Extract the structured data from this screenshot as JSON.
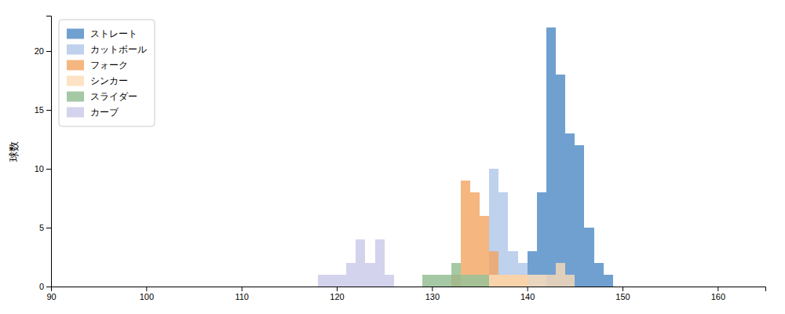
{
  "chart_data": {
    "type": "histogram",
    "ylabel": "球数",
    "xlim": [
      90,
      165
    ],
    "ylim": [
      0,
      23
    ],
    "xticks": [
      90,
      100,
      110,
      120,
      130,
      140,
      150,
      160
    ],
    "yticks": [
      0,
      5,
      10,
      15,
      20
    ],
    "legend": "upper left",
    "bins": [
      90,
      91,
      92,
      93,
      94,
      95,
      96,
      97,
      98,
      99,
      100,
      101,
      102,
      103,
      104,
      105,
      106,
      107,
      108,
      109,
      110,
      111,
      112,
      113,
      114,
      115,
      116,
      117,
      118,
      119,
      120,
      121,
      122,
      123,
      124,
      125,
      126,
      127,
      128,
      129,
      130,
      131,
      132,
      133,
      134,
      135,
      136,
      137,
      138,
      139,
      140,
      141,
      142,
      143,
      144,
      145,
      146,
      147,
      148,
      149,
      150,
      151,
      152,
      153,
      154,
      155,
      156,
      157,
      158,
      159,
      160,
      161,
      162,
      163,
      164,
      165
    ],
    "series": [
      {
        "name": "ストレート",
        "color": "#4C88C4",
        "values": [
          0,
          0,
          0,
          0,
          0,
          0,
          0,
          0,
          0,
          0,
          0,
          0,
          0,
          0,
          0,
          0,
          0,
          0,
          0,
          0,
          0,
          0,
          0,
          0,
          0,
          0,
          0,
          0,
          0,
          0,
          0,
          0,
          0,
          0,
          0,
          0,
          0,
          0,
          0,
          0,
          0,
          0,
          0,
          0,
          0,
          0,
          0,
          0,
          0,
          0,
          3,
          8,
          22,
          18,
          13,
          12,
          5,
          2,
          1,
          0,
          0,
          0,
          0,
          0,
          0,
          0,
          0,
          0,
          0,
          0,
          0,
          0,
          0,
          0,
          0
        ]
      },
      {
        "name": "カットボール",
        "color": "#AEC6E8",
        "values": [
          0,
          0,
          0,
          0,
          0,
          0,
          0,
          0,
          0,
          0,
          0,
          0,
          0,
          0,
          0,
          0,
          0,
          0,
          0,
          0,
          0,
          0,
          0,
          0,
          0,
          0,
          0,
          0,
          0,
          0,
          0,
          0,
          0,
          0,
          0,
          0,
          0,
          0,
          0,
          0,
          0,
          0,
          0,
          0,
          1,
          1,
          10,
          8,
          3,
          2,
          1,
          1,
          0,
          0,
          0,
          0,
          0,
          0,
          0,
          0,
          0,
          0,
          0,
          0,
          0,
          0,
          0,
          0,
          0,
          0,
          0,
          0,
          0,
          0,
          0
        ]
      },
      {
        "name": "フォーク",
        "color": "#F4A460",
        "values": [
          0,
          0,
          0,
          0,
          0,
          0,
          0,
          0,
          0,
          0,
          0,
          0,
          0,
          0,
          0,
          0,
          0,
          0,
          0,
          0,
          0,
          0,
          0,
          0,
          0,
          0,
          0,
          0,
          0,
          0,
          0,
          0,
          0,
          0,
          0,
          0,
          0,
          0,
          0,
          0,
          0,
          0,
          1,
          9,
          8,
          6,
          3,
          1,
          1,
          1,
          0,
          0,
          0,
          0,
          0,
          0,
          0,
          0,
          0,
          0,
          0,
          0,
          0,
          0,
          0,
          0,
          0,
          0,
          0,
          0,
          0,
          0,
          0,
          0,
          0
        ]
      },
      {
        "name": "シンカー",
        "color": "#FDDCB5",
        "values": [
          0,
          0,
          0,
          0,
          0,
          0,
          0,
          0,
          0,
          0,
          0,
          0,
          0,
          0,
          0,
          0,
          0,
          0,
          0,
          0,
          0,
          0,
          0,
          0,
          0,
          0,
          0,
          0,
          0,
          0,
          0,
          0,
          0,
          0,
          0,
          0,
          0,
          0,
          0,
          0,
          0,
          0,
          0,
          1,
          1,
          1,
          1,
          1,
          1,
          1,
          1,
          1,
          1,
          2,
          1,
          0,
          0,
          0,
          0,
          0,
          0,
          0,
          0,
          0,
          0,
          0,
          0,
          0,
          0,
          0,
          0,
          0,
          0,
          0,
          0
        ]
      },
      {
        "name": "スライダー",
        "color": "#8FBC8F",
        "values": [
          0,
          0,
          0,
          0,
          0,
          0,
          0,
          0,
          0,
          0,
          0,
          0,
          0,
          0,
          0,
          0,
          0,
          0,
          0,
          0,
          0,
          0,
          0,
          0,
          0,
          0,
          0,
          0,
          0,
          0,
          0,
          0,
          0,
          0,
          0,
          0,
          0,
          0,
          0,
          1,
          1,
          1,
          2,
          1,
          1,
          1,
          0,
          0,
          0,
          0,
          0,
          0,
          0,
          0,
          0,
          0,
          0,
          0,
          0,
          0,
          0,
          0,
          0,
          0,
          0,
          0,
          0,
          0,
          0,
          0,
          0,
          0,
          0,
          0,
          0
        ]
      },
      {
        "name": "カーブ",
        "color": "#C8C8E8",
        "values": [
          0,
          0,
          0,
          0,
          0,
          0,
          0,
          0,
          0,
          0,
          0,
          0,
          0,
          0,
          0,
          0,
          0,
          0,
          0,
          0,
          0,
          0,
          0,
          0,
          0,
          0,
          0,
          0,
          1,
          1,
          1,
          2,
          4,
          2,
          4,
          1,
          0,
          0,
          0,
          0,
          0,
          0,
          0,
          0,
          0,
          0,
          0,
          0,
          0,
          0,
          0,
          0,
          0,
          0,
          0,
          0,
          0,
          0,
          0,
          0,
          0,
          0,
          0,
          0,
          0,
          0,
          0,
          0,
          0,
          0,
          0,
          0,
          0,
          0,
          0
        ]
      }
    ]
  }
}
